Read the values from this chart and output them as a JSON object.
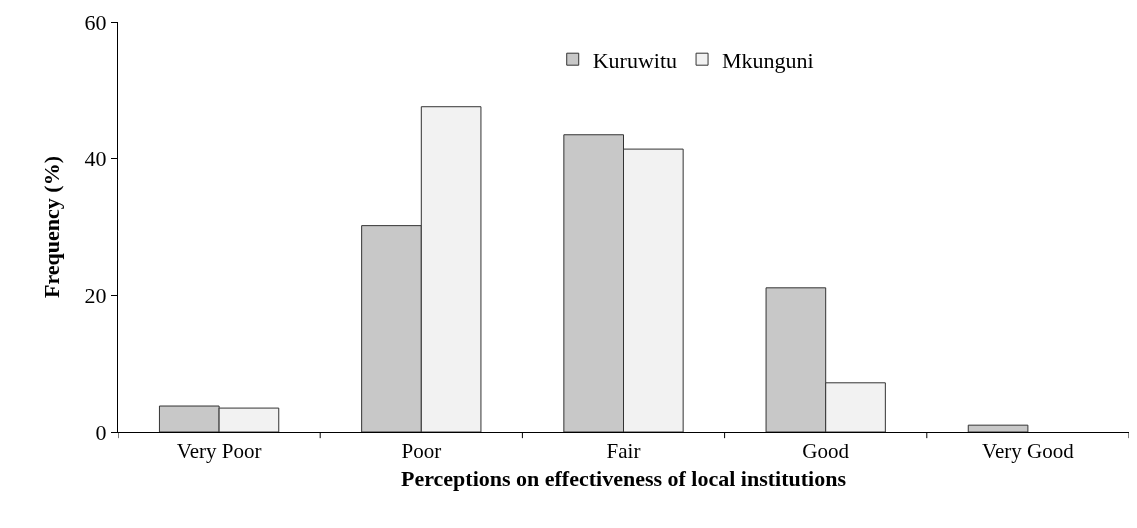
{
  "chart_data": {
    "type": "bar",
    "xlabel": "Perceptions on effectiveness of local institutions",
    "ylabel": "Frequency (%)",
    "categories": [
      "Very Poor",
      "Poor",
      "Fair",
      "Good",
      "Very Good"
    ],
    "series": [
      {
        "name": "Kuruwitu",
        "color": "#c8c8c8",
        "values": [
          3.8,
          30.2,
          43.5,
          21.1,
          1.0
        ]
      },
      {
        "name": "Mkunguni",
        "color": "#f2f2f2",
        "values": [
          3.5,
          47.6,
          41.4,
          7.2,
          null
        ]
      }
    ],
    "ylim": [
      0,
      60
    ],
    "yticks": [
      0,
      20,
      40,
      60
    ],
    "grid": false,
    "legend": "top right"
  }
}
